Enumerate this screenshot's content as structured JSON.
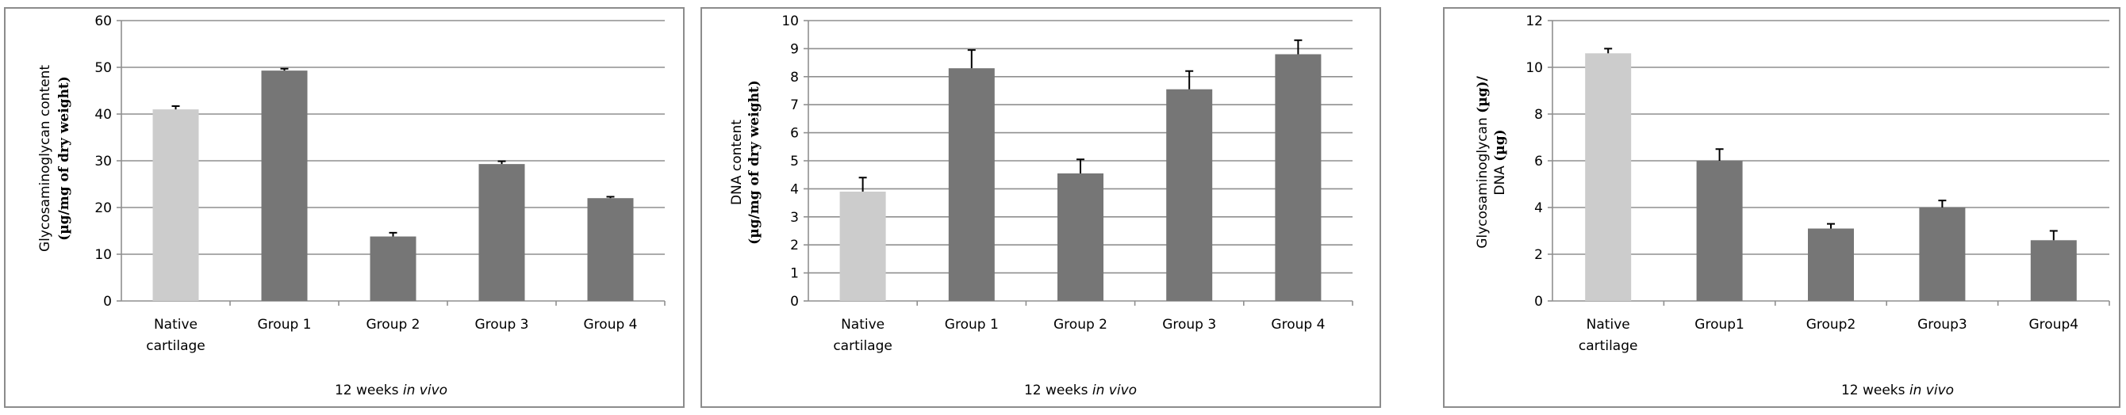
{
  "chart_data": [
    {
      "type": "bar",
      "categories": [
        "Native cartilage",
        "Group 1",
        "Group 2",
        "Group 3",
        "Group 4"
      ],
      "category_lines": [
        [
          "Native",
          "cartilage"
        ],
        [
          "Group 1"
        ],
        [
          "Group 2"
        ],
        [
          "Group 3"
        ],
        [
          "Group 4"
        ]
      ],
      "values": [
        41,
        49.3,
        13.8,
        29.3,
        22
      ],
      "errors": [
        0.7,
        0.4,
        0.8,
        0.6,
        0.3
      ],
      "bar_colors": [
        "#cccccc",
        "#767676",
        "#767676",
        "#767676",
        "#767676"
      ],
      "ylabel_line1": "Glycosaminoglycan content",
      "ylabel_line2": "(µg/mg of dry weight)",
      "xlabel": "12 weeks ",
      "xlabel_italic": "in vivo",
      "ylim": [
        0,
        60
      ],
      "yticks": [
        0,
        10,
        20,
        30,
        40,
        50,
        60
      ],
      "grid": true
    },
    {
      "type": "bar",
      "categories": [
        "Native cartilage",
        "Group 1",
        "Group 2",
        "Group 3",
        "Group 4"
      ],
      "category_lines": [
        [
          "Native",
          "cartilage"
        ],
        [
          "Group 1"
        ],
        [
          "Group 2"
        ],
        [
          "Group 3"
        ],
        [
          "Group 4"
        ]
      ],
      "values": [
        3.9,
        8.3,
        4.55,
        7.55,
        8.8
      ],
      "errors": [
        0.5,
        0.65,
        0.5,
        0.65,
        0.5
      ],
      "bar_colors": [
        "#cccccc",
        "#767676",
        "#767676",
        "#767676",
        "#767676"
      ],
      "ylabel_line1": "DNA content",
      "ylabel_line2": "(µg/mg of dry weight)",
      "xlabel": "12 weeks ",
      "xlabel_italic": "in vivo",
      "ylim": [
        0,
        10
      ],
      "yticks": [
        0,
        1,
        2,
        3,
        4,
        5,
        6,
        7,
        8,
        9,
        10
      ],
      "grid": true
    },
    {
      "type": "bar",
      "categories": [
        "Native cartilage",
        "Group1",
        "Group2",
        "Group3",
        "Group4"
      ],
      "category_lines": [
        [
          "Native",
          "cartilage"
        ],
        [
          "Group1"
        ],
        [
          "Group2"
        ],
        [
          "Group3"
        ],
        [
          "Group4"
        ]
      ],
      "values": [
        10.6,
        6,
        3.1,
        4,
        2.6
      ],
      "errors": [
        0.2,
        0.5,
        0.2,
        0.3,
        0.4
      ],
      "bar_colors": [
        "#cccccc",
        "#767676",
        "#767676",
        "#767676",
        "#767676"
      ],
      "ylabel_line1_plain": "Glycosaminoglycan ",
      "ylabel_line1_bold": "(µg)/",
      "ylabel_line2_plain": "DNA ",
      "ylabel_line2_bold": "(µg)",
      "xlabel": "12 weeks ",
      "xlabel_italic": "in vivo",
      "ylim": [
        0,
        12
      ],
      "yticks": [
        0,
        2,
        4,
        6,
        8,
        10,
        12
      ],
      "grid": true
    }
  ]
}
